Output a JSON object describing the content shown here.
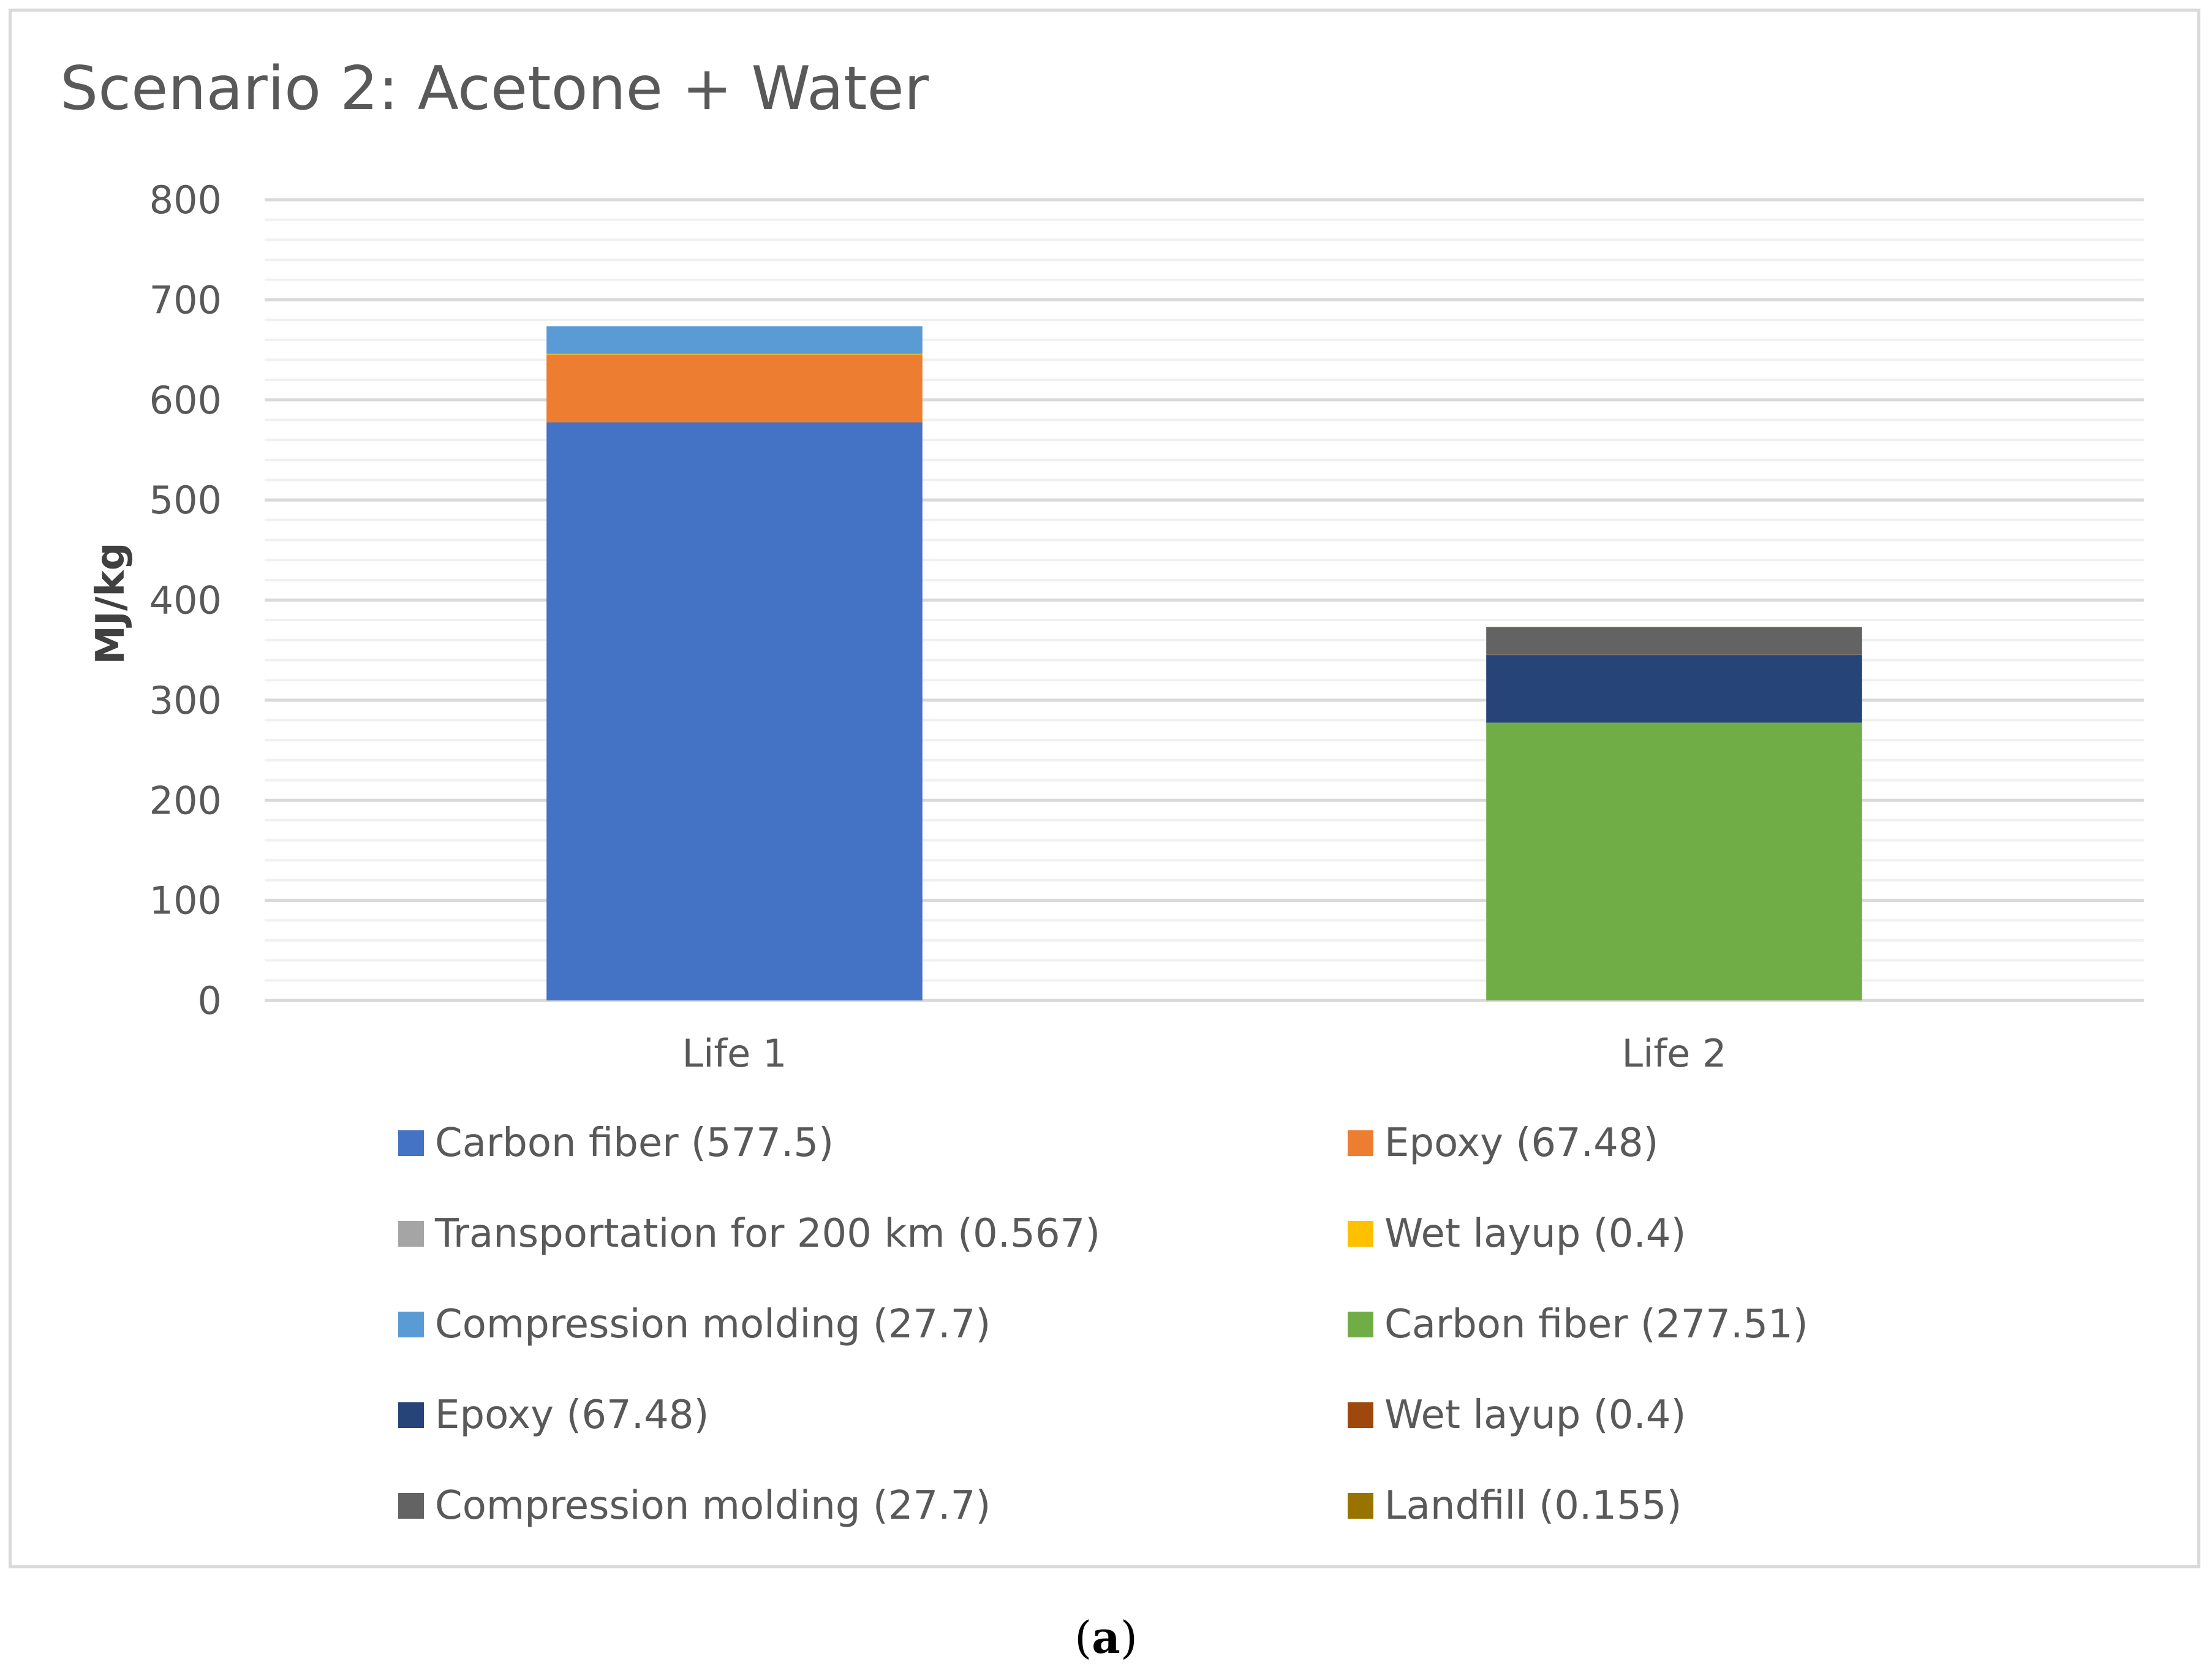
{
  "chart_data": {
    "type": "bar",
    "stacked": true,
    "title": "Scenario 2: Acetone + Water",
    "xlabel": "",
    "ylabel": "MJ/kg",
    "ylim": [
      0,
      800
    ],
    "yticks": [
      "0",
      "100",
      "200",
      "300",
      "400",
      "500",
      "600",
      "700",
      "800"
    ],
    "categories": [
      "Life 1",
      "Life 2"
    ],
    "series": [
      {
        "name": "Carbon fiber (577.5)",
        "color": "#4472c4",
        "values": [
          577.5,
          0
        ]
      },
      {
        "name": "Epoxy (67.48)",
        "color": "#ed7d31",
        "values": [
          67.48,
          0
        ]
      },
      {
        "name": "Transportation for 200 km (0.567)",
        "color": "#a5a5a5",
        "values": [
          0.567,
          0
        ]
      },
      {
        "name": "Wet layup (0.4)",
        "color": "#ffc000",
        "values": [
          0.4,
          0
        ]
      },
      {
        "name": "Compression molding (27.7)",
        "color": "#5b9bd5",
        "values": [
          27.7,
          0
        ]
      },
      {
        "name": "Carbon fiber (277.51)",
        "color": "#70ad47",
        "values": [
          0,
          277.51
        ]
      },
      {
        "name": "Epoxy (67.48)",
        "color": "#264478",
        "values": [
          0,
          67.48
        ]
      },
      {
        "name": "Wet layup (0.4)",
        "color": "#9e480e",
        "values": [
          0,
          0.4
        ]
      },
      {
        "name": "Compression molding (27.7)",
        "color": "#636363",
        "values": [
          0,
          27.7
        ]
      },
      {
        "name": "Landfill (0.155)",
        "color": "#997300",
        "values": [
          0,
          0.155
        ]
      }
    ],
    "legend_position": "bottom",
    "legend_order": [
      0,
      1,
      2,
      3,
      4,
      5,
      6,
      7,
      8,
      9
    ],
    "grid": true
  },
  "caption": {
    "label": "a"
  }
}
